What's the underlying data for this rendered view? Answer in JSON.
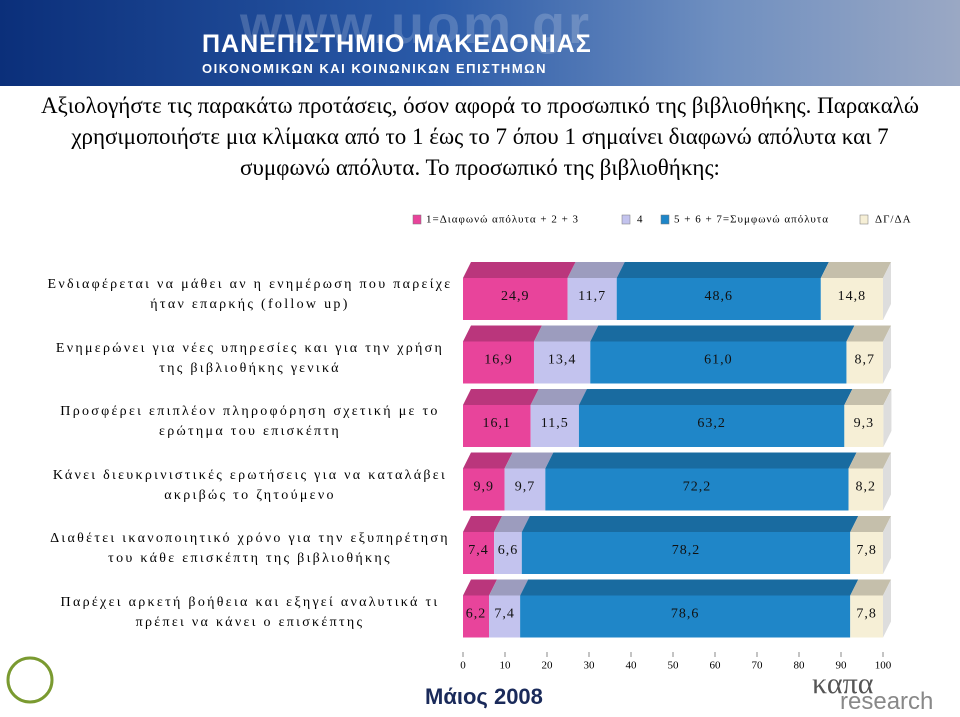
{
  "header": {
    "site": "www.uom.gr",
    "name": "ΠΑΝΕΠΙΣΤΗΜΙΟ ΜΑΚΕΔΟΝΙΑΣ",
    "faculty": "ΟΙΚΟΝΟΜΙΚΩΝ ΚΑΙ ΚΟΙΝΩΝΙΚΩΝ ΕΠΙΣΤΗΜΩΝ"
  },
  "footer": {
    "date": "Μάιος 2008",
    "logo_top": "καπα",
    "logo_bottom": "research"
  },
  "chart_data": {
    "type": "stacked_bar_horizontal",
    "title": "Αξιολογήστε τις παρακάτω προτάσεις, όσον αφορά το προσωπικό της βιβλιοθήκης. Παρακαλώ χρησιμοποιήστε μια κλίμακα από το 1 έως το 7 όπου 1 σημαίνει διαφωνώ απόλυτα και 7 συμφωνώ απόλυτα. Το προσωπικό της βιβλιοθήκης:",
    "categories": [
      "Ενδιαφέρεται να μάθει αν η ενημέρωση που παρείχε ήταν επαρκής (follow up)",
      "Ενημερώνει για νέες υπηρεσίες και για την χρήση της βιβλιοθήκης γενικά",
      "Προσφέρει επιπλέον πληροφόρηση σχετική με το ερώτημα του επισκέπτη",
      "Κάνει διευκρινιστικές ερωτήσεις για να καταλάβει ακριβώς το ζητούμενο",
      "Διαθέτει ικανοποιητικό χρόνο για την εξυπηρέτηση του κάθε επισκέπτη της βιβλιοθήκης",
      "Παρέχει αρκετή βοήθεια και εξηγεί αναλυτικά τι πρέπει να κάνει ο επισκέπτης"
    ],
    "series": [
      {
        "name": "1=Διαφωνώ απόλυτα + 2 + 3",
        "color": "#e8449b",
        "values": [
          24.9,
          16.9,
          16.1,
          9.9,
          7.4,
          6.2
        ],
        "value_labels": [
          "24,9",
          "16,9",
          "16,1",
          "9,9",
          "7,4",
          "6,2"
        ]
      },
      {
        "name": "4",
        "color": "#c3c3ee",
        "values": [
          11.7,
          13.4,
          11.5,
          9.7,
          6.6,
          7.4
        ],
        "value_labels": [
          "11,7",
          "13,4",
          "11,5",
          "9,7",
          "6,6",
          "7,4"
        ]
      },
      {
        "name": "5 + 6 + 7=Συμφωνώ απόλυτα",
        "color": "#1f86c8",
        "values": [
          48.6,
          61.0,
          63.2,
          72.2,
          78.2,
          78.6
        ],
        "value_labels": [
          "48,6",
          "61,0",
          "63,2",
          "72,2",
          "78,2",
          "78,6"
        ]
      },
      {
        "name": "ΔΓ/ΔΑ",
        "color": "#f6efd6",
        "values": [
          14.8,
          8.7,
          9.3,
          8.2,
          7.8,
          7.8
        ],
        "value_labels": [
          "14,8",
          "8,7",
          "9,3",
          "8,2",
          "7,8",
          "7,8"
        ]
      }
    ],
    "xlim": [
      0,
      100
    ],
    "xticks": [
      0,
      10,
      20,
      30,
      40,
      50,
      60,
      70,
      80,
      90,
      100
    ]
  }
}
